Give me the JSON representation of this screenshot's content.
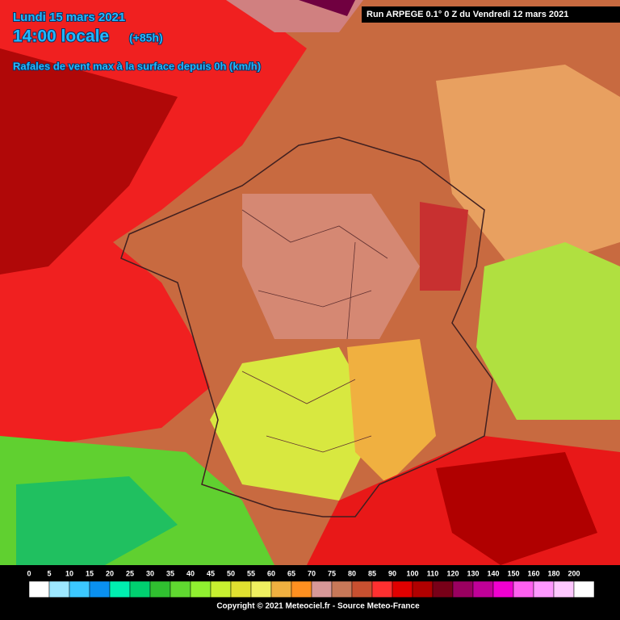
{
  "header": {
    "date": "Lundi 15 mars 2021",
    "time": "14:00 locale",
    "lead": "(+85h)",
    "subtitle": "Rafales de vent max à la surface depuis 0h (km/h)",
    "run": "Run ARPEGE 0.1° 0 Z du Vendredi 12 mars 2021"
  },
  "legend": {
    "values": [
      0,
      5,
      10,
      15,
      20,
      25,
      30,
      35,
      40,
      45,
      50,
      55,
      60,
      65,
      70,
      75,
      80,
      85,
      90,
      100,
      110,
      120,
      130,
      140,
      150,
      160,
      180,
      200
    ],
    "colors": [
      "#ffffff",
      "#9de8ff",
      "#3cc8ff",
      "#0a90f0",
      "#00eeb0",
      "#00d070",
      "#30c030",
      "#60d830",
      "#90f030",
      "#c8f030",
      "#e0e030",
      "#f0f060",
      "#f0b040",
      "#ff9020",
      "#d89898",
      "#c87858",
      "#c85030",
      "#ff3030",
      "#e00000",
      "#b00000",
      "#780018",
      "#9a0060",
      "#c00098",
      "#f000d0",
      "#ff60f0",
      "#ff98ff",
      "#ffc8ff",
      "#ffffff"
    ]
  },
  "footer": {
    "copyright": "Copyright © 2021 Meteociel.fr - Source Meteo-France"
  }
}
